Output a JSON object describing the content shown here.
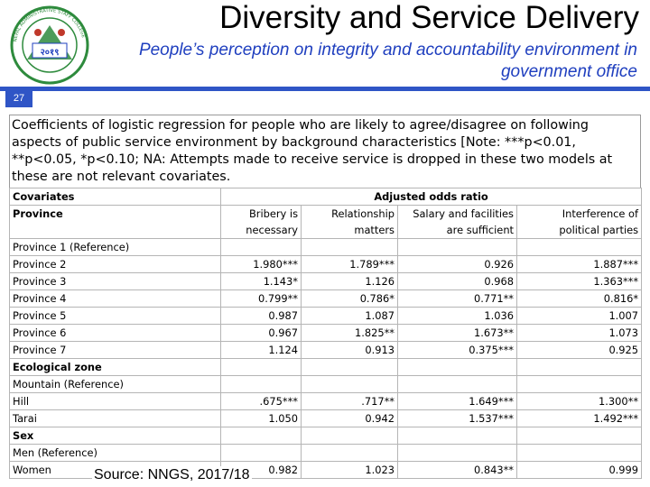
{
  "header": {
    "title": "Diversity and Service Delivery",
    "subtitle": "People’s perception on integrity and accountability environment in government office",
    "slide_number": "27"
  },
  "logo": {
    "year_text": "२०१९",
    "ring_text": "NEPAL ADMINISTRATIVE STAFF COLLEGE"
  },
  "table": {
    "caption": "Coefficients of logistic regression for people who are likely to agree/disagree on following aspects of public service environment by background characteristics [Note: ***p<0.01, **p<0.05, *p<0.10; NA: Attempts made to receive service is dropped in these two models at these are not relevant covariates.",
    "covariates_label": "Covariates",
    "adjusted_label": "Adjusted odds ratio",
    "province_label": "Province",
    "columns": [
      "Bribery is necessary",
      "Relationship matters",
      "Salary and facilities are sufficient",
      "Interference of political parties"
    ],
    "rows": [
      {
        "label": "Province 1 (Reference)",
        "values": [
          "",
          "",
          "",
          ""
        ]
      },
      {
        "label": "Province 2",
        "values": [
          "1.980***",
          "1.789***",
          "0.926",
          "1.887***"
        ]
      },
      {
        "label": "Province 3",
        "values": [
          "1.143*",
          "1.126",
          "0.968",
          "1.363***"
        ]
      },
      {
        "label": "Province 4",
        "values": [
          "0.799**",
          "0.786*",
          "0.771**",
          "0.816*"
        ]
      },
      {
        "label": "Province 5",
        "values": [
          "0.987",
          "1.087",
          "1.036",
          "1.007"
        ]
      },
      {
        "label": "Province 6",
        "values": [
          "0.967",
          "1.825**",
          "1.673**",
          "1.073"
        ]
      },
      {
        "label": "Province 7",
        "values": [
          "1.124",
          "0.913",
          "0.375***",
          "0.925"
        ]
      },
      {
        "label": "Ecological zone",
        "values": [
          "",
          "",
          "",
          ""
        ],
        "bold": true
      },
      {
        "label": "Mountain (Reference)",
        "values": [
          "",
          "",
          "",
          ""
        ]
      },
      {
        "label": "Hill",
        "values": [
          ".675***",
          ".717**",
          "1.649***",
          "1.300**"
        ]
      },
      {
        "label": "Tarai",
        "values": [
          "1.050",
          "0.942",
          "1.537***",
          "1.492***"
        ]
      },
      {
        "label": "Sex",
        "values": [
          "",
          "",
          "",
          ""
        ],
        "bold": true
      },
      {
        "label": "Men (Reference)",
        "values": [
          "",
          "",
          "",
          ""
        ]
      },
      {
        "label": "Women",
        "values": [
          "0.982",
          "1.023",
          "0.843**",
          "0.999"
        ]
      }
    ]
  },
  "source": "Source: NNGS, 2017/18",
  "colors": {
    "accent": "#2f55c6",
    "subtitle": "#1f3fbf",
    "logo_green": "#2e8b3d",
    "logo_red": "#c0392b"
  }
}
